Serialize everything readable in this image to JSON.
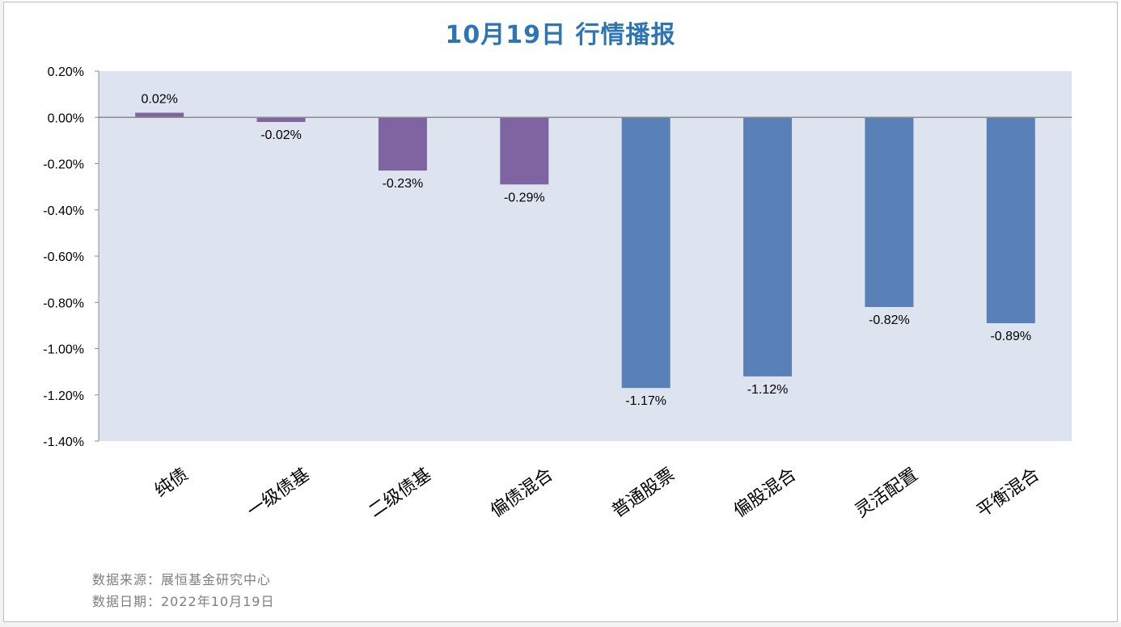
{
  "title": "10月19日  行情播报",
  "footnotes": {
    "source": "数据来源：展恒基金研究中心",
    "date": "数据日期：2022年10月19日"
  },
  "colors": {
    "plot_background": "#dde4ef",
    "bond_bar": "#8064a2",
    "equity_bar": "#5981b8",
    "title": "#2e75b6",
    "footnote": "#7f7f7f"
  },
  "chart_data": {
    "type": "bar",
    "title": "10月19日  行情播报",
    "xlabel": "",
    "ylabel": "",
    "categories": [
      "纯债",
      "一级债基",
      "二级债基",
      "偏债混合",
      "普通股票",
      "偏股混合",
      "灵活配置",
      "平衡混合"
    ],
    "values": [
      0.02,
      -0.02,
      -0.23,
      -0.29,
      -1.17,
      -1.12,
      -0.82,
      -0.89
    ],
    "value_labels": [
      "0.02%",
      "-0.02%",
      "-0.23%",
      "-0.29%",
      "-1.17%",
      "-1.12%",
      "-0.82%",
      "-0.89%"
    ],
    "bar_color_groups": [
      "bond",
      "bond",
      "bond",
      "bond",
      "equity",
      "equity",
      "equity",
      "equity"
    ],
    "ylim": [
      -1.4,
      0.2
    ],
    "yticks": [
      0.2,
      0.0,
      -0.2,
      -0.4,
      -0.6,
      -0.8,
      -1.0,
      -1.2,
      -1.4
    ],
    "ytick_labels": [
      "0.20%",
      "0.00%",
      "-0.20%",
      "-0.40%",
      "-0.60%",
      "-0.80%",
      "-1.00%",
      "-1.20%",
      "-1.40%"
    ],
    "grid": false,
    "legend": "none"
  }
}
